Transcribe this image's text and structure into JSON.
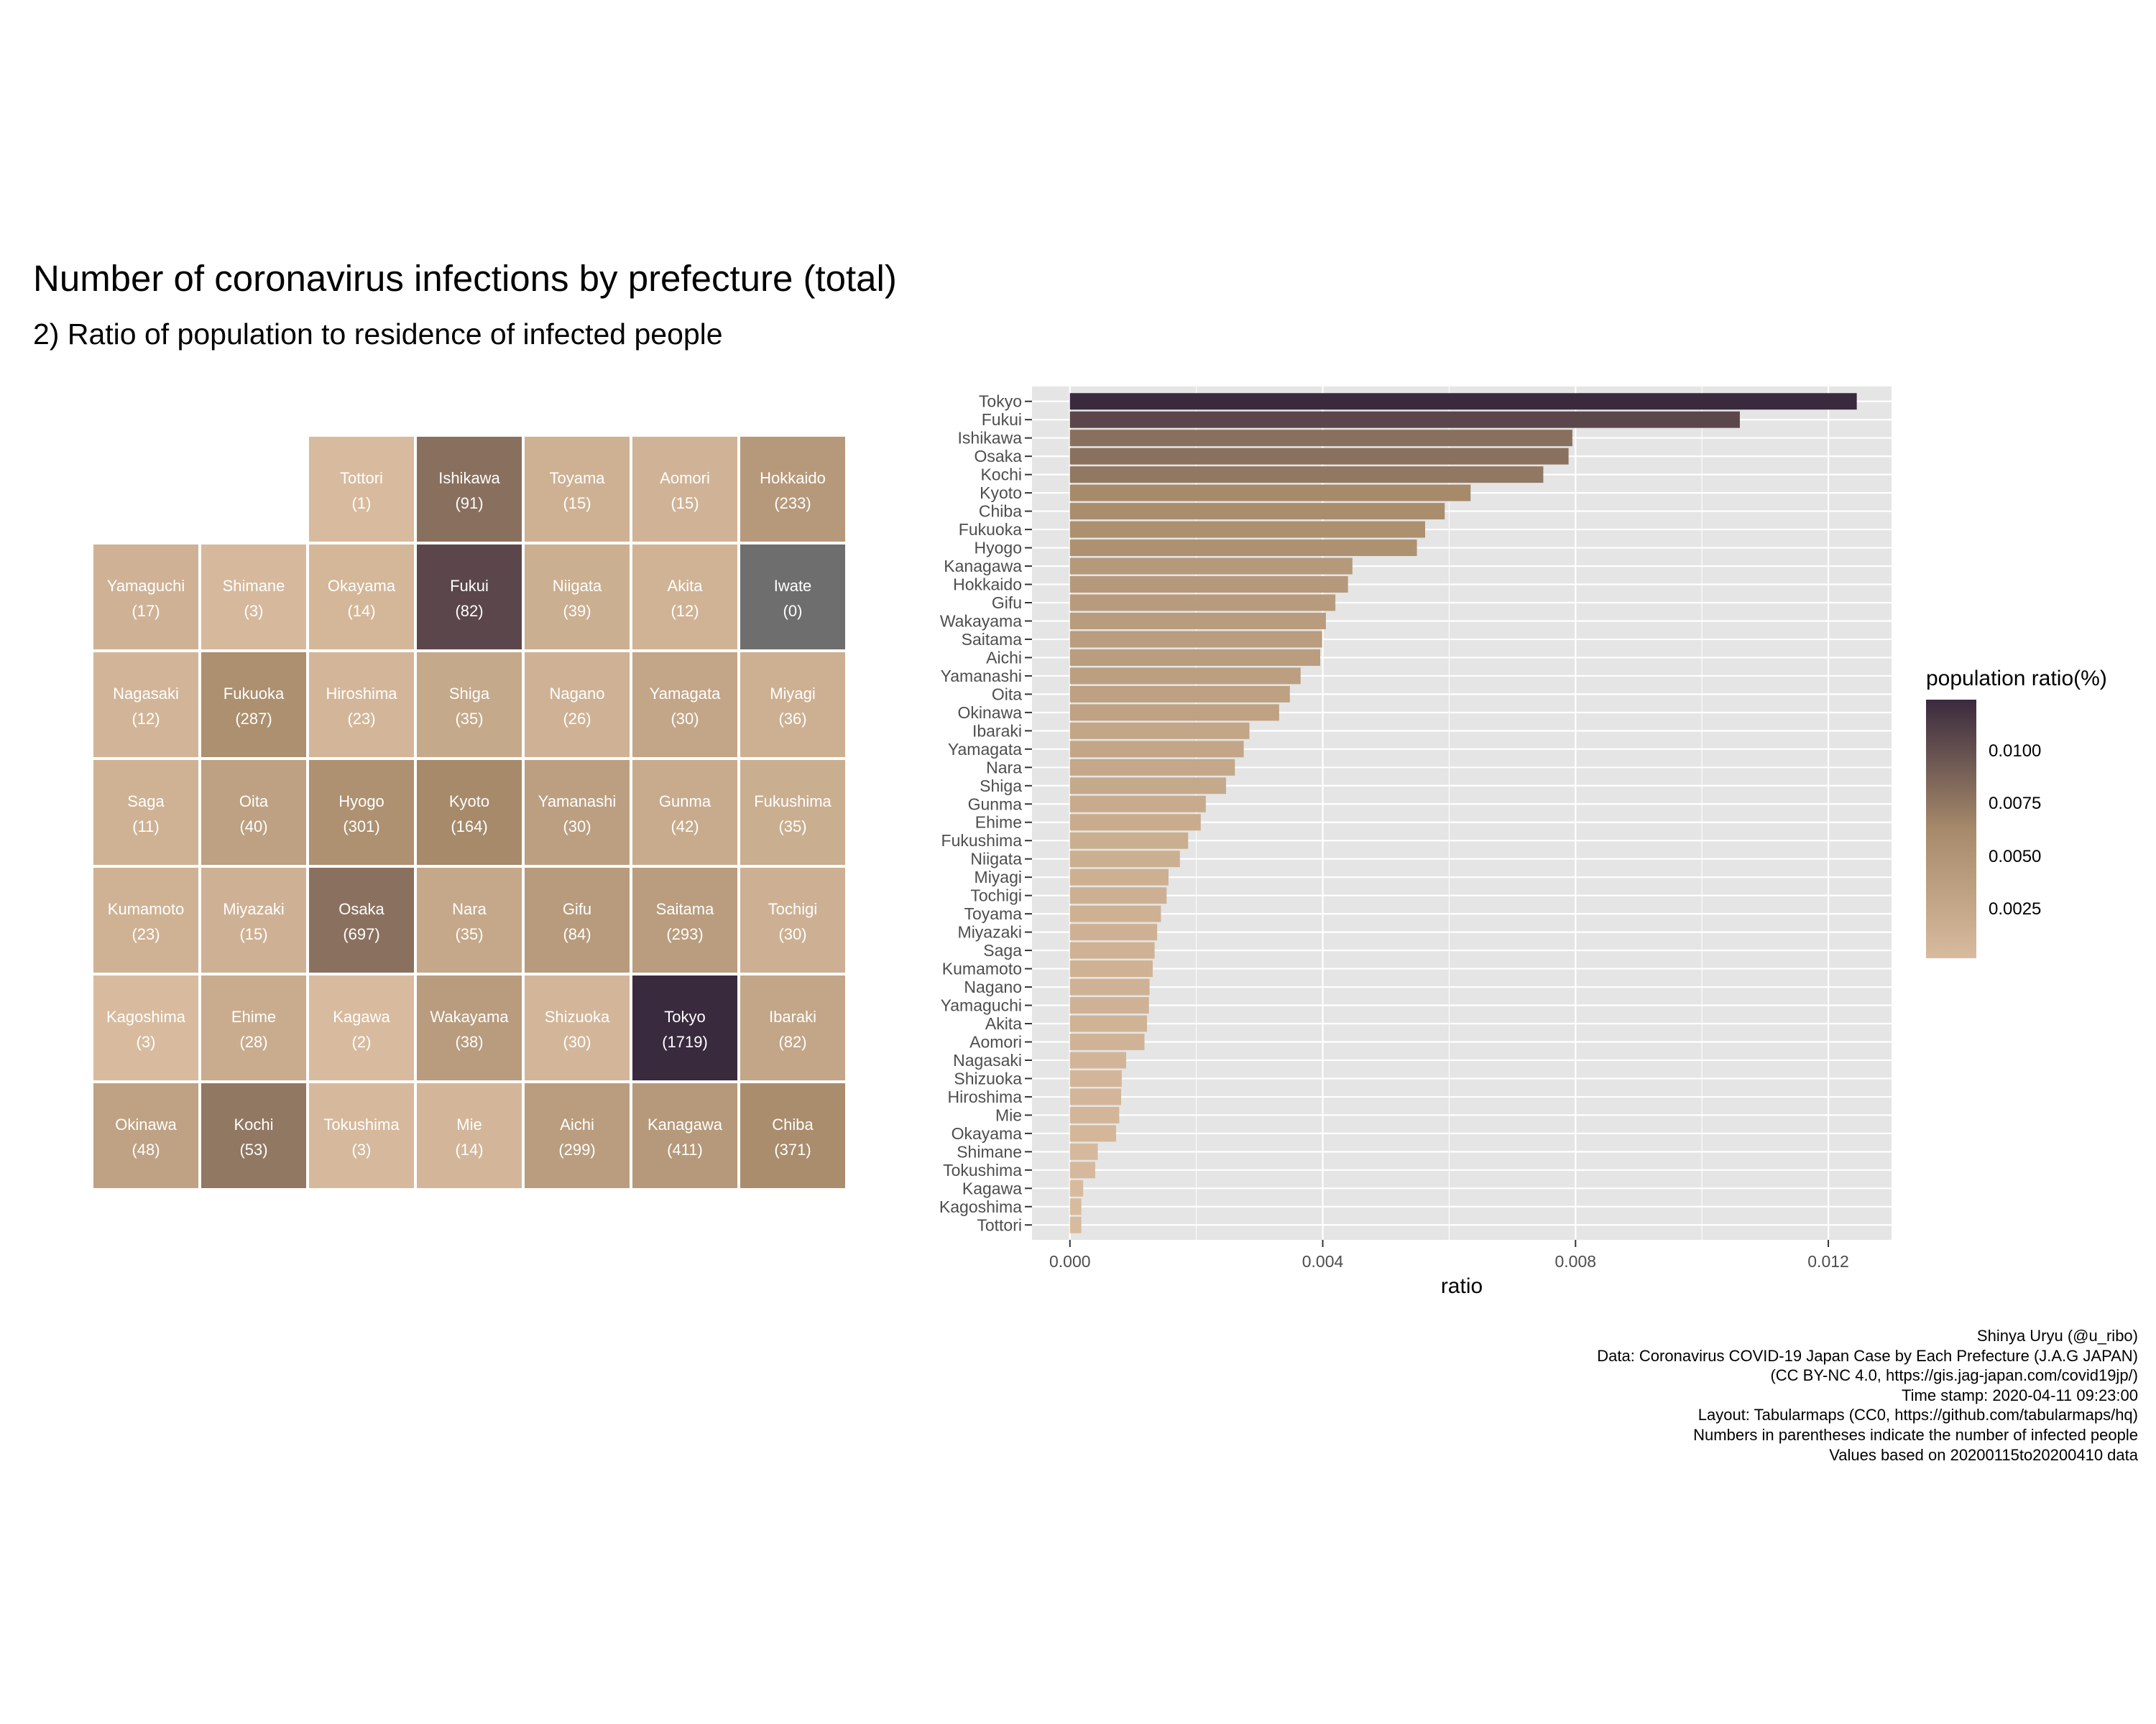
{
  "title": "Number of coronavirus infections by prefecture (total)",
  "subtitle": "2) Ratio of population to residence of infected people",
  "colors": {
    "background": "#ffffff",
    "panel": "#e5e5e5",
    "grid": "#ffffff",
    "scale_low": "#d8bb9e",
    "scale_mid": "#a68a6a",
    "scale_high": "#3a2a3e",
    "na_tile": "#6e6e6e"
  },
  "tiles": [
    {
      "name": "Tottori",
      "count": "(1)",
      "row": 0,
      "col": 2,
      "value": 0.00018
    },
    {
      "name": "Ishikawa",
      "count": "(91)",
      "row": 0,
      "col": 3,
      "value": 0.00795
    },
    {
      "name": "Toyama",
      "count": "(15)",
      "row": 0,
      "col": 4,
      "value": 0.00144
    },
    {
      "name": "Aomori",
      "count": "(15)",
      "row": 0,
      "col": 5,
      "value": 0.00118
    },
    {
      "name": "Hokkaido",
      "count": "(233)",
      "row": 0,
      "col": 6,
      "value": 0.0044
    },
    {
      "name": "Yamaguchi",
      "count": "(17)",
      "row": 1,
      "col": 0,
      "value": 0.00125
    },
    {
      "name": "Shimane",
      "count": "(3)",
      "row": 1,
      "col": 1,
      "value": 0.00044
    },
    {
      "name": "Okayama",
      "count": "(14)",
      "row": 1,
      "col": 2,
      "value": 0.00073
    },
    {
      "name": "Fukui",
      "count": "(82)",
      "row": 1,
      "col": 3,
      "value": 0.0106
    },
    {
      "name": "Niigata",
      "count": "(39)",
      "row": 1,
      "col": 4,
      "value": 0.00174
    },
    {
      "name": "Akita",
      "count": "(12)",
      "row": 1,
      "col": 5,
      "value": 0.00122
    },
    {
      "name": "Iwate",
      "count": "(0)",
      "row": 1,
      "col": 6,
      "value": null
    },
    {
      "name": "Nagasaki",
      "count": "(12)",
      "row": 2,
      "col": 0,
      "value": 0.00089
    },
    {
      "name": "Fukuoka",
      "count": "(287)",
      "row": 2,
      "col": 1,
      "value": 0.00562
    },
    {
      "name": "Hiroshima",
      "count": "(23)",
      "row": 2,
      "col": 2,
      "value": 0.00081
    },
    {
      "name": "Shiga",
      "count": "(35)",
      "row": 2,
      "col": 3,
      "value": 0.00247
    },
    {
      "name": "Nagano",
      "count": "(26)",
      "row": 2,
      "col": 4,
      "value": 0.00126
    },
    {
      "name": "Yamagata",
      "count": "(30)",
      "row": 2,
      "col": 5,
      "value": 0.00275
    },
    {
      "name": "Miyagi",
      "count": "(36)",
      "row": 2,
      "col": 6,
      "value": 0.00156
    },
    {
      "name": "Saga",
      "count": "(11)",
      "row": 3,
      "col": 0,
      "value": 0.00134
    },
    {
      "name": "Oita",
      "count": "(40)",
      "row": 3,
      "col": 1,
      "value": 0.00348
    },
    {
      "name": "Hyogo",
      "count": "(301)",
      "row": 3,
      "col": 2,
      "value": 0.00549
    },
    {
      "name": "Kyoto",
      "count": "(164)",
      "row": 3,
      "col": 3,
      "value": 0.00634
    },
    {
      "name": "Yamanashi",
      "count": "(30)",
      "row": 3,
      "col": 4,
      "value": 0.00365
    },
    {
      "name": "Gunma",
      "count": "(42)",
      "row": 3,
      "col": 5,
      "value": 0.00215
    },
    {
      "name": "Fukushima",
      "count": "(35)",
      "row": 3,
      "col": 6,
      "value": 0.00187
    },
    {
      "name": "Kumamoto",
      "count": "(23)",
      "row": 4,
      "col": 0,
      "value": 0.00131
    },
    {
      "name": "Miyazaki",
      "count": "(15)",
      "row": 4,
      "col": 1,
      "value": 0.00138
    },
    {
      "name": "Osaka",
      "count": "(697)",
      "row": 4,
      "col": 2,
      "value": 0.00789
    },
    {
      "name": "Nara",
      "count": "(35)",
      "row": 4,
      "col": 3,
      "value": 0.00261
    },
    {
      "name": "Gifu",
      "count": "(84)",
      "row": 4,
      "col": 4,
      "value": 0.0042
    },
    {
      "name": "Saitama",
      "count": "(293)",
      "row": 4,
      "col": 5,
      "value": 0.00399
    },
    {
      "name": "Tochigi",
      "count": "(30)",
      "row": 4,
      "col": 6,
      "value": 0.00153
    },
    {
      "name": "Kagoshima",
      "count": "(3)",
      "row": 5,
      "col": 0,
      "value": 0.00018
    },
    {
      "name": "Ehime",
      "count": "(28)",
      "row": 5,
      "col": 1,
      "value": 0.00207
    },
    {
      "name": "Kagawa",
      "count": "(2)",
      "row": 5,
      "col": 2,
      "value": 0.00021
    },
    {
      "name": "Wakayama",
      "count": "(38)",
      "row": 5,
      "col": 3,
      "value": 0.00405
    },
    {
      "name": "Shizuoka",
      "count": "(30)",
      "row": 5,
      "col": 4,
      "value": 0.00082
    },
    {
      "name": "Tokyo",
      "count": "(1719)",
      "row": 5,
      "col": 5,
      "value": 0.01245
    },
    {
      "name": "Ibaraki",
      "count": "(82)",
      "row": 5,
      "col": 6,
      "value": 0.00284
    },
    {
      "name": "Okinawa",
      "count": "(48)",
      "row": 6,
      "col": 0,
      "value": 0.00331
    },
    {
      "name": "Kochi",
      "count": "(53)",
      "row": 6,
      "col": 1,
      "value": 0.00749
    },
    {
      "name": "Tokushima",
      "count": "(3)",
      "row": 6,
      "col": 2,
      "value": 0.0004
    },
    {
      "name": "Mie",
      "count": "(14)",
      "row": 6,
      "col": 3,
      "value": 0.00078
    },
    {
      "name": "Aichi",
      "count": "(299)",
      "row": 6,
      "col": 4,
      "value": 0.00396
    },
    {
      "name": "Kanagawa",
      "count": "(411)",
      "row": 6,
      "col": 5,
      "value": 0.00447
    },
    {
      "name": "Chiba",
      "count": "(371)",
      "row": 6,
      "col": 6,
      "value": 0.00593
    }
  ],
  "chart_data": {
    "type": "bar",
    "orientation": "horizontal",
    "categories": [
      "Tokyo",
      "Fukui",
      "Ishikawa",
      "Osaka",
      "Kochi",
      "Kyoto",
      "Chiba",
      "Fukuoka",
      "Hyogo",
      "Kanagawa",
      "Hokkaido",
      "Gifu",
      "Wakayama",
      "Saitama",
      "Aichi",
      "Yamanashi",
      "Oita",
      "Okinawa",
      "Ibaraki",
      "Yamagata",
      "Nara",
      "Shiga",
      "Gunma",
      "Ehime",
      "Fukushima",
      "Niigata",
      "Miyagi",
      "Tochigi",
      "Toyama",
      "Miyazaki",
      "Saga",
      "Kumamoto",
      "Nagano",
      "Yamaguchi",
      "Akita",
      "Aomori",
      "Nagasaki",
      "Shizuoka",
      "Hiroshima",
      "Mie",
      "Okayama",
      "Shimane",
      "Tokushima",
      "Kagawa",
      "Kagoshima",
      "Tottori"
    ],
    "values": [
      0.01245,
      0.0106,
      0.00795,
      0.00789,
      0.00749,
      0.00634,
      0.00593,
      0.00562,
      0.00549,
      0.00447,
      0.0044,
      0.0042,
      0.00405,
      0.00399,
      0.00396,
      0.00365,
      0.00348,
      0.00331,
      0.00284,
      0.00275,
      0.00261,
      0.00247,
      0.00215,
      0.00207,
      0.00187,
      0.00174,
      0.00156,
      0.00153,
      0.00144,
      0.00138,
      0.00134,
      0.00131,
      0.00126,
      0.00125,
      0.00122,
      0.00118,
      0.00089,
      0.00082,
      0.00081,
      0.00078,
      0.00073,
      0.00044,
      0.0004,
      0.00021,
      0.00018,
      0.00018
    ],
    "xlabel": "ratio",
    "ylabel": "",
    "xlim": [
      -0.0006,
      0.013
    ],
    "xticks": [
      0.0,
      0.004,
      0.008,
      0.012
    ],
    "xtick_labels": [
      "0.000",
      "0.004",
      "0.008",
      "0.012"
    ],
    "grid": true,
    "legend": {
      "title": "population ratio(%)",
      "placement": "right",
      "range": [
        0.00018,
        0.01245
      ],
      "ticks": [
        0.01,
        0.0075,
        0.005,
        0.0025
      ],
      "tick_labels": [
        "0.0100",
        "0.0075",
        "0.0050",
        "0.0025"
      ]
    }
  },
  "caption": [
    "Shinya Uryu (@u_ribo)",
    "Data: Coronavirus COVID-19 Japan Case by Each Prefecture (J.A.G JAPAN)",
    "(CC BY-NC 4.0, https://gis.jag-japan.com/covid19jp/)",
    "Time stamp: 2020-04-11 09:23:00",
    "Layout: Tabularmaps (CC0, https://github.com/tabularmaps/hq)",
    "Numbers in parentheses indicate the number of infected people",
    "Values based on 20200115to20200410 data"
  ]
}
